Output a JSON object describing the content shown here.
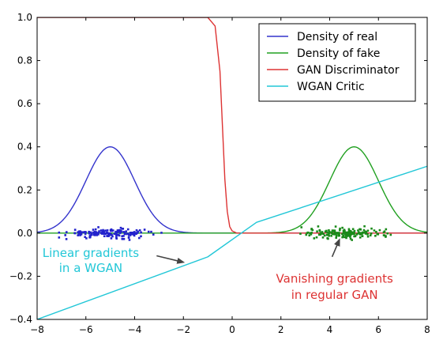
{
  "chart_data": {
    "type": "line",
    "xlim": [
      -8,
      8
    ],
    "ylim": [
      -0.4,
      1.0
    ],
    "grid": false,
    "legend": {
      "placement": "top-right",
      "entries": [
        {
          "label": "Density of real",
          "color": "#3333cc"
        },
        {
          "label": "Density of fake",
          "color": "#20a020"
        },
        {
          "label": "GAN Discriminator",
          "color": "#dd3333"
        },
        {
          "label": "WGAN Critic",
          "color": "#22c7d7"
        }
      ]
    },
    "x_ticks": [
      -8,
      -6,
      -4,
      -2,
      0,
      2,
      4,
      6,
      8
    ],
    "y_ticks": [
      -0.4,
      -0.2,
      0.0,
      0.2,
      0.4,
      0.6,
      0.8,
      1.0
    ],
    "x_tick_labels": [
      "−8",
      "−6",
      "−4",
      "−2",
      "0",
      "2",
      "4",
      "6",
      "8"
    ],
    "y_tick_labels": [
      "−0.4",
      "−0.2",
      "0.0",
      "0.2",
      "0.4",
      "0.6",
      "0.8",
      "1.0"
    ],
    "series": [
      {
        "name": "Density of real",
        "kind": "gaussian",
        "mean": -5.0,
        "sigma": 1.0,
        "peak": 0.4,
        "color": "#3333cc"
      },
      {
        "name": "Density of fake",
        "kind": "gaussian",
        "mean": 5.0,
        "sigma": 1.0,
        "peak": 0.4,
        "color": "#20a020"
      },
      {
        "name": "GAN Discriminator",
        "kind": "points",
        "color": "#dd3333",
        "x": [
          -8,
          -1.0,
          -0.7,
          -0.5,
          -0.4,
          -0.3,
          -0.2,
          -0.1,
          0.0,
          0.2,
          0.5,
          8
        ],
        "y": [
          1.0,
          1.0,
          0.96,
          0.75,
          0.5,
          0.25,
          0.1,
          0.03,
          0.01,
          0.0,
          0.0,
          0.0
        ]
      },
      {
        "name": "WGAN Critic",
        "kind": "points",
        "color": "#22c7d7",
        "x": [
          -8,
          -1.0,
          1.0,
          8
        ],
        "y": [
          -0.4,
          -0.11,
          0.05,
          0.31
        ]
      }
    ],
    "scatter": [
      {
        "name": "real samples",
        "color": "#2222cc",
        "center": -5.0,
        "spread": 0.9,
        "count": 160,
        "y_spread": 0.01,
        "x_min": -7.1,
        "x_max": -2.2
      },
      {
        "name": "fake samples",
        "color": "#1a8a1a",
        "center": 4.7,
        "spread": 0.8,
        "count": 170,
        "y_spread": 0.012,
        "x_min": 2.8,
        "x_max": 7.0
      }
    ],
    "annotations": [
      {
        "lines": [
          "Linear gradients",
          "in a WGAN"
        ],
        "color": "#22c7d7",
        "text_x": -5.8,
        "text_y": [
          -0.11,
          -0.18
        ],
        "arrow_from": [
          -3.1,
          -0.105
        ],
        "arrow_to": [
          -2.0,
          -0.135
        ]
      },
      {
        "lines": [
          "Vanishing gradients",
          "in regular GAN"
        ],
        "color": "#dd3333",
        "text_x": 4.2,
        "text_y": [
          -0.23,
          -0.305
        ],
        "arrow_from": [
          4.1,
          -0.11
        ],
        "arrow_to": [
          4.4,
          -0.03
        ]
      }
    ]
  }
}
